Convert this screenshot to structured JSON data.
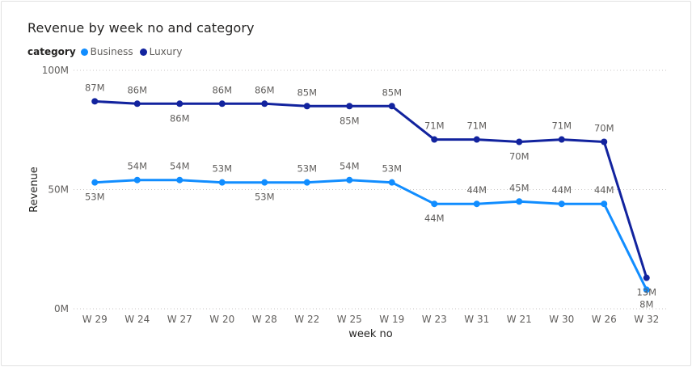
{
  "chart_data": {
    "type": "line",
    "title": "Revenue by week no and category",
    "legend_title": "category",
    "xlabel": "week no",
    "ylabel": "Revenue",
    "categories": [
      "W 29",
      "W 24",
      "W 27",
      "W 20",
      "W 28",
      "W 22",
      "W 25",
      "W 19",
      "W 23",
      "W 31",
      "W 21",
      "W 30",
      "W 26",
      "W 32"
    ],
    "ylim": [
      0,
      100
    ],
    "y_ticks": [
      {
        "value": 0,
        "label": "0M"
      },
      {
        "value": 50,
        "label": "50M"
      },
      {
        "value": 100,
        "label": "100M"
      }
    ],
    "grid": true,
    "legend_position": "top-left",
    "series": [
      {
        "name": "Business",
        "color": "#118DFF",
        "values": [
          53,
          54,
          54,
          53,
          53,
          53,
          54,
          53,
          44,
          44,
          45,
          44,
          44,
          8
        ],
        "labels": [
          "53M",
          "54M",
          "54M",
          "53M",
          "53M",
          "53M",
          "54M",
          "53M",
          "44M",
          "44M",
          "45M",
          "44M",
          "44M",
          "8M"
        ],
        "label_position": [
          "below",
          "above",
          "above",
          "above",
          "below",
          "above",
          "above",
          "above",
          "below",
          "above",
          "above",
          "above",
          "above",
          "below"
        ]
      },
      {
        "name": "Luxury",
        "color": "#12239E",
        "values": [
          87,
          86,
          86,
          86,
          86,
          85,
          85,
          85,
          71,
          71,
          70,
          71,
          70,
          13
        ],
        "labels": [
          "87M",
          "86M",
          "86M",
          "86M",
          "86M",
          "85M",
          "85M",
          "85M",
          "71M",
          "71M",
          "70M",
          "71M",
          "70M",
          "13M"
        ],
        "label_position": [
          "above",
          "above",
          "below",
          "above",
          "above",
          "above",
          "below",
          "above",
          "above",
          "above",
          "below",
          "above",
          "above",
          "below"
        ]
      }
    ]
  }
}
